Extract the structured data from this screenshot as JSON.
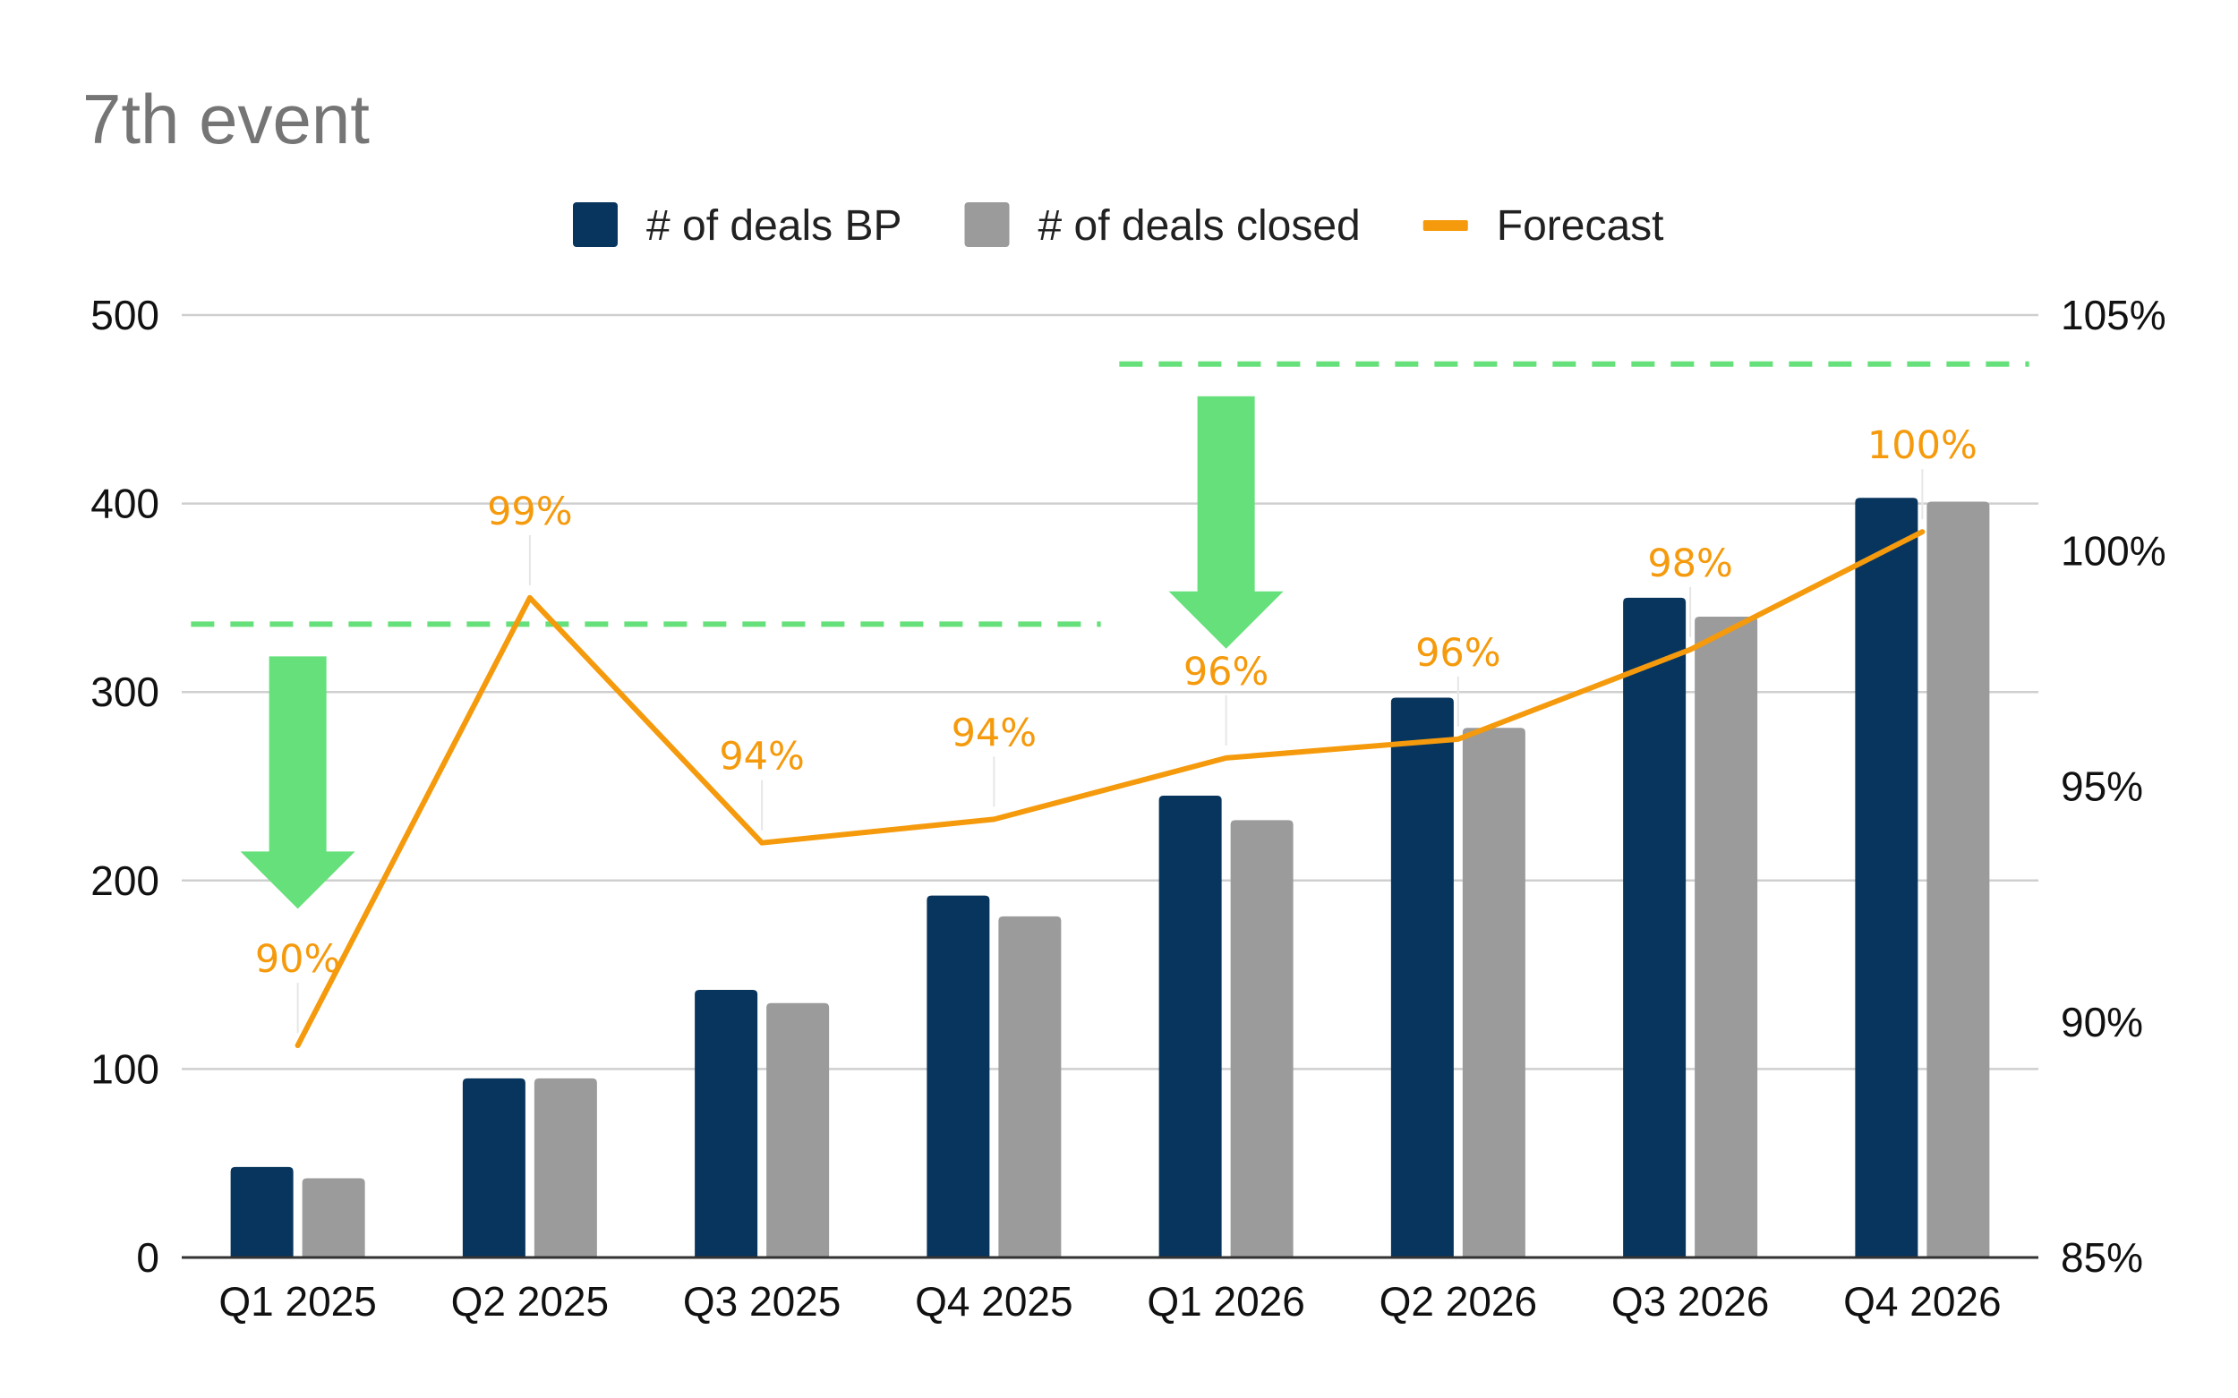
{
  "chart_data": {
    "type": "bar",
    "title": "7th event",
    "categories": [
      "Q1 2025",
      "Q2 2025",
      "Q3 2025",
      "Q4 2025",
      "Q1 2026",
      "Q2 2026",
      "Q3 2026",
      "Q4 2026"
    ],
    "series": [
      {
        "name": "# of deals BP",
        "type": "bar",
        "axis": "left",
        "color": "#08355e",
        "values": [
          48,
          95,
          142,
          192,
          245,
          297,
          350,
          403
        ]
      },
      {
        "name": "# of deals closed",
        "type": "bar",
        "axis": "left",
        "color": "#9b9b9b",
        "values": [
          42,
          95,
          135,
          181,
          232,
          281,
          340,
          401
        ]
      },
      {
        "name": "Forecast",
        "type": "line",
        "axis": "right",
        "color": "#f59a0c",
        "values": [
          89.5,
          99.0,
          93.8,
          94.3,
          95.6,
          96.0,
          97.9,
          100.4
        ],
        "labels": [
          "90%",
          "99%",
          "94%",
          "94%",
          "96%",
          "96%",
          "98%",
          "100%"
        ]
      }
    ],
    "y_left": {
      "range": [
        0,
        500
      ],
      "ticks": [
        0,
        100,
        200,
        300,
        400,
        500
      ],
      "tick_labels": [
        "0",
        "100",
        "200",
        "300",
        "400",
        "500"
      ]
    },
    "y_right": {
      "range": [
        85,
        105
      ],
      "ticks": [
        85,
        90,
        95,
        100,
        105
      ],
      "tick_labels": [
        "85%",
        "90%",
        "95%",
        "100%",
        "105%"
      ]
    },
    "grid": true,
    "legend_position": "top-center",
    "annotations": {
      "reference_lines": [
        {
          "axis": "left",
          "value": 336,
          "from_category": 0,
          "to_category": 3,
          "color": "#66e07a",
          "style": "dashed"
        },
        {
          "axis": "left",
          "value": 474,
          "from_category": 4,
          "to_category": 7,
          "color": "#66e07a",
          "style": "dashed"
        }
      ],
      "arrows": [
        {
          "category": 0,
          "direction": "down",
          "color": "#66e07a"
        },
        {
          "category": 4,
          "direction": "down",
          "color": "#66e07a"
        }
      ]
    }
  }
}
